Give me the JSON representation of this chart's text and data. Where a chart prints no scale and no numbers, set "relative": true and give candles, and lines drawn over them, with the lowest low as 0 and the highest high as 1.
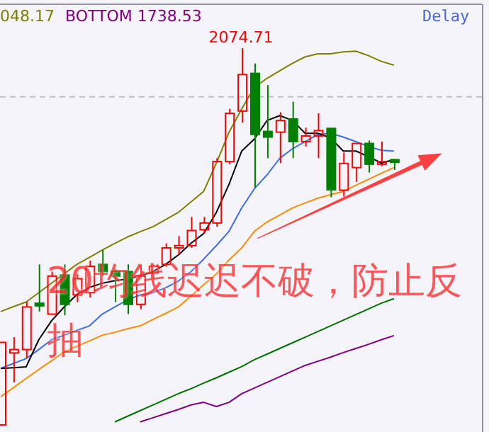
{
  "chart_data": {
    "type": "candlestick",
    "relative": true,
    "categories": [
      null,
      null,
      null,
      null,
      null,
      null,
      null,
      null,
      null,
      null,
      null,
      null,
      null,
      null,
      null,
      null,
      null,
      null,
      null,
      null,
      null,
      null,
      null,
      null,
      null,
      null,
      null,
      null,
      null,
      null,
      null,
      null
    ],
    "ohlc": [
      [
        0,
        0.219,
        0,
        0.219
      ],
      [
        0.191,
        0.233,
        0.113,
        0.2
      ],
      [
        0.2,
        0.327,
        0.177,
        0.313
      ],
      [
        0.323,
        0.426,
        0.301,
        0.316
      ],
      [
        0.294,
        0.407,
        0.294,
        0.395
      ],
      [
        0.398,
        0.426,
        0.291,
        0.32
      ],
      [
        0.345,
        0.401,
        0.326,
        0.388
      ],
      [
        0.351,
        0.436,
        0.338,
        0.421
      ],
      [
        0.426,
        0.464,
        0.395,
        0.407
      ],
      [
        0.407,
        0.414,
        0.326,
        0.395
      ],
      [
        0.407,
        0.426,
        0.294,
        0.32
      ],
      [
        0.32,
        0.426,
        0.307,
        0.395
      ],
      [
        0.403,
        0.426,
        0.388,
        0.421
      ],
      [
        0.426,
        0.482,
        0.42,
        0.47
      ],
      [
        0.47,
        0.501,
        0.451,
        0.476
      ],
      [
        0.476,
        0.552,
        0.47,
        0.516
      ],
      [
        0.518,
        0.552,
        0.508,
        0.536
      ],
      [
        0.536,
        0.708,
        0.526,
        0.699
      ],
      [
        0.699,
        0.839,
        0.692,
        0.827
      ],
      [
        0.833,
        1,
        0.802,
        0.93
      ],
      [
        0.933,
        0.959,
        0.629,
        0.771
      ],
      [
        0.779,
        0.902,
        0.708,
        0.764
      ],
      [
        0.777,
        0.83,
        0.695,
        0.808
      ],
      [
        0.812,
        0.858,
        0.708,
        0.752
      ],
      [
        0.752,
        0.789,
        0.739,
        0.767
      ],
      [
        0.767,
        0.827,
        0.708,
        0.781
      ],
      [
        0.787,
        0.787,
        0.604,
        0.624
      ],
      [
        0.623,
        0.723,
        0.606,
        0.694
      ],
      [
        0.683,
        0.747,
        0.645,
        0.747
      ],
      [
        0.747,
        0.755,
        0.67,
        0.692
      ],
      [
        0.692,
        0.752,
        0.687,
        0.699
      ],
      [
        0.704,
        0.704,
        0.677,
        0.697
      ]
    ],
    "series": [
      {
        "type": "line",
        "color": "#808000",
        "values": [
          0.301,
          0.314,
          0.326,
          0.351,
          0.376,
          0.401,
          0.426,
          0.445,
          0.464,
          0.482,
          0.499,
          0.513,
          0.526,
          0.545,
          0.564,
          0.592,
          0.62,
          0.695,
          0.777,
          0.839,
          0.896,
          0.92,
          0.94,
          0.96,
          0.977,
          0.985,
          0.985,
          0.99,
          0.992,
          0.98,
          0.965,
          0.955
        ]
      },
      {
        "type": "line",
        "color": "#ff8c00",
        "values": [
          0.075,
          0.099,
          0.123,
          0.147,
          0.17,
          0.194,
          0.209,
          0.223,
          0.238,
          0.246,
          0.255,
          0.263,
          0.28,
          0.296,
          0.313,
          0.342,
          0.372,
          0.401,
          0.438,
          0.47,
          0.514,
          0.539,
          0.557,
          0.576,
          0.589,
          0.602,
          0.611,
          0.62,
          0.636,
          0.652,
          0.668,
          0.683
        ]
      },
      {
        "type": "line",
        "color": "#3c6ee6",
        "values": [
          0.15,
          0.163,
          0.176,
          0.2,
          0.226,
          0.238,
          0.251,
          0.263,
          0.294,
          0.313,
          0.332,
          0.345,
          0.351,
          0.364,
          0.382,
          0.407,
          0.44,
          0.476,
          0.514,
          0.576,
          0.627,
          0.664,
          0.708,
          0.733,
          0.752,
          0.771,
          0.774,
          0.764,
          0.752,
          0.739,
          0.729,
          0.727
        ]
      },
      {
        "type": "line",
        "color": "#000000",
        "values": [
          0.15,
          0.152,
          0.154,
          0.226,
          0.276,
          0.313,
          0.346,
          0.365,
          0.376,
          0.383,
          0.387,
          0.395,
          0.407,
          0.426,
          0.451,
          0.482,
          0.508,
          0.564,
          0.639,
          0.727,
          0.759,
          0.808,
          0.821,
          0.808,
          0.774,
          0.774,
          0.762,
          0.727,
          0.727,
          0.712,
          0.695,
          0.704
        ]
      },
      {
        "type": "line",
        "color": "#007000",
        "values": [
          null,
          null,
          null,
          null,
          null,
          null,
          null,
          null,
          null,
          0.008,
          0.023,
          0.038,
          0.053,
          0.068,
          0.083,
          0.096,
          0.111,
          0.125,
          0.14,
          0.155,
          0.173,
          0.188,
          0.203,
          0.218,
          0.233,
          0.248,
          0.263,
          0.278,
          0.293,
          0.308,
          0.323,
          0.335
        ]
      },
      {
        "type": "line",
        "color": "#800080",
        "values": [
          null,
          null,
          null,
          null,
          null,
          null,
          null,
          null,
          null,
          null,
          null,
          0.008,
          0.019,
          0.03,
          0.041,
          0.053,
          0.06,
          0.049,
          0.06,
          0.083,
          0.098,
          0.113,
          0.128,
          0.143,
          0.158,
          0.169,
          0.18,
          0.192,
          0.203,
          0.214,
          0.226,
          0.237
        ]
      }
    ],
    "ref_lines": [
      {
        "axis": "y",
        "value": 0.871,
        "line_style": "dashed",
        "color": "#c0c0c0"
      }
    ],
    "annotations": [
      "048.17",
      "BOTTOM 1738.53",
      "Delay",
      "2074.71",
      "20均线迟迟不破，防止反抽"
    ]
  }
}
